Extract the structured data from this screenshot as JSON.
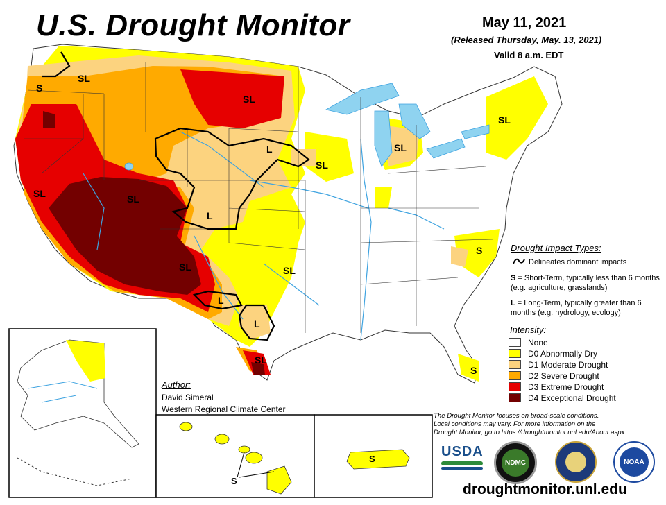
{
  "header": {
    "title": "U.S. Drought Monitor",
    "date": "May 11, 2021",
    "released": "(Released Thursday, May. 13, 2021)",
    "valid": "Valid 8 a.m. EDT"
  },
  "map_labels": {
    "sl": "SL",
    "s": "S",
    "l": "L"
  },
  "impact_types": {
    "heading": "Drought Impact Types:",
    "line_desc": "Delineates dominant impacts",
    "s_code": "S",
    "s_desc": " = Short-Term, typically less than 6 months (e.g. agriculture, grasslands)",
    "l_code": "L",
    "l_desc": " = Long-Term, typically greater than 6 months (e.g. hydrology, ecology)"
  },
  "intensity": {
    "heading": "Intensity:",
    "levels": [
      {
        "label": "None",
        "color": "#ffffff"
      },
      {
        "label": "D0 Abnormally Dry",
        "color": "#ffff00"
      },
      {
        "label": "D1 Moderate Drought",
        "color": "#fcd37f"
      },
      {
        "label": "D2 Severe Drought",
        "color": "#ffaa00"
      },
      {
        "label": "D3 Extreme Drought",
        "color": "#e60000"
      },
      {
        "label": "D4 Exceptional Drought",
        "color": "#730000"
      }
    ]
  },
  "author": {
    "heading": "Author:",
    "name": "David Simeral",
    "org": "Western Regional Climate Center"
  },
  "disclaimer": {
    "line1": "The Drought Monitor focuses on broad-scale conditions.",
    "line2": "Local conditions may vary. For more information on the",
    "line3": "Drought Monitor, go to https://droughtmonitor.unl.edu/About.aspx"
  },
  "logos": {
    "usda": "USDA",
    "ndmc": "NDMC",
    "noaa": "NOAA"
  },
  "footer": {
    "url": "droughtmonitor.unl.edu"
  },
  "colors": {
    "none": "#ffffff",
    "d0": "#ffff00",
    "d1": "#fcd37f",
    "d2": "#ffaa00",
    "d3": "#e60000",
    "d4": "#730000",
    "water": "#8fd3f0",
    "river": "#3ea3e0"
  }
}
